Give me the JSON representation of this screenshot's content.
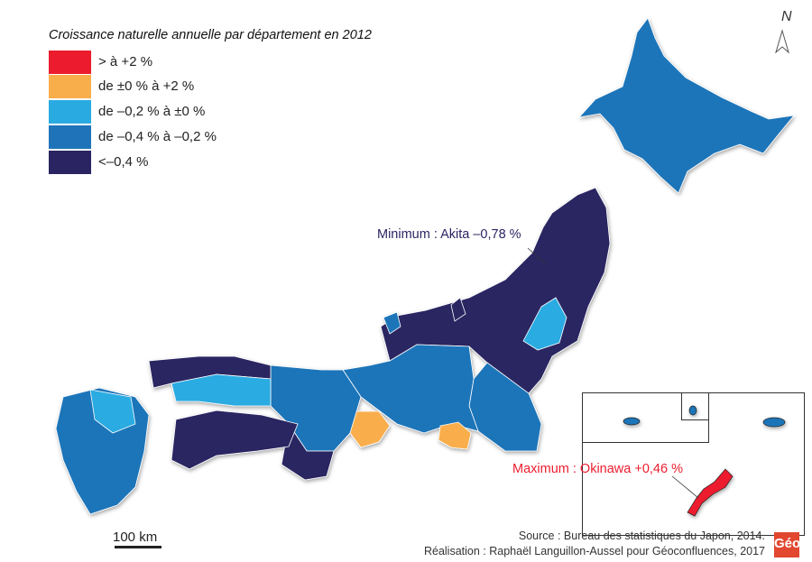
{
  "legend": {
    "title": "Croissance naturelle annuelle par département en 2012",
    "items": [
      {
        "label": "> à +2 %",
        "color": "#ec1c2e"
      },
      {
        "label": "de ±0 % à +2 %",
        "color": "#f9ae4c"
      },
      {
        "label": "de –0,2 % à ±0 %",
        "color": "#29abe2"
      },
      {
        "label": "de –0,4 % à –0,2 %",
        "color": "#1f74b9"
      },
      {
        "label": "<–0,4 %",
        "color": "#2a2562"
      }
    ]
  },
  "annotations": {
    "minimum": "Minimum : Akita –0,78 %",
    "maximum": "Maximum : Okinawa +0,46 %"
  },
  "north_label": "N",
  "scale_label": "100 km",
  "source": "Source : Bureau des statistiques du Japon, 2014.",
  "credit": "Réalisation : Raphaël Languillon-Aussel pour Géoconfluences, 2017",
  "logo_text": "Géo"
}
